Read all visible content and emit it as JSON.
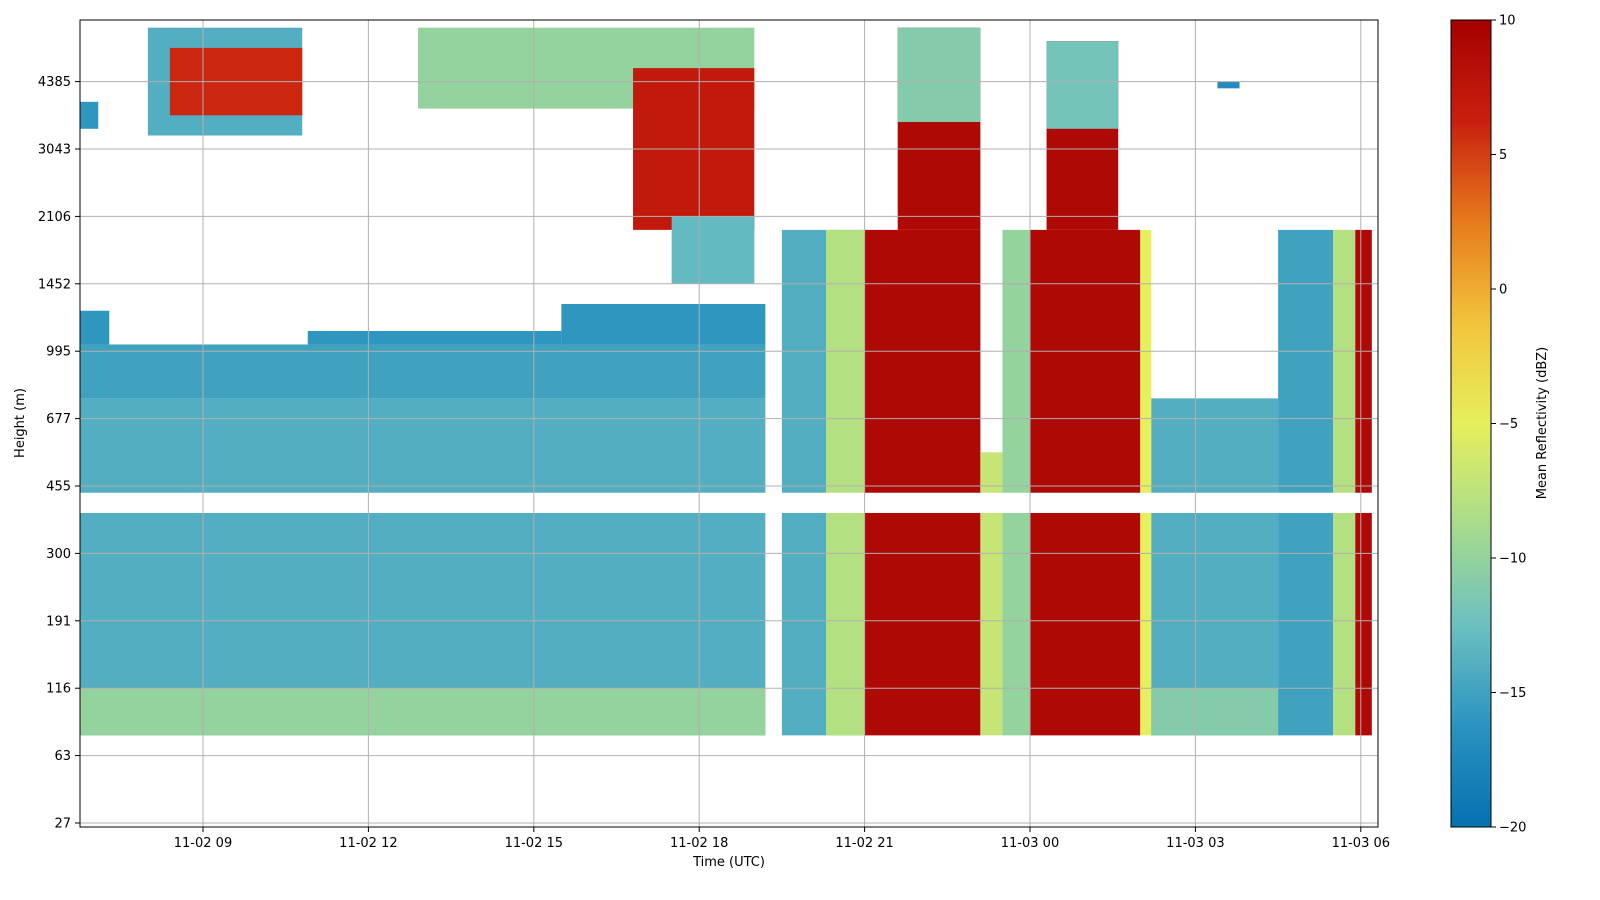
{
  "chart_data": {
    "type": "heatmap",
    "title": "",
    "xlabel": "Time (UTC)",
    "ylabel": "Height (m)",
    "grid": true,
    "x_range_hours": [
      6.2,
      30.3
    ],
    "x_ticks": [
      {
        "label": "11-02 09",
        "hours": 9
      },
      {
        "label": "11-02 12",
        "hours": 12
      },
      {
        "label": "11-02 15",
        "hours": 15
      },
      {
        "label": "11-02 18",
        "hours": 18
      },
      {
        "label": "11-02 21",
        "hours": 21
      },
      {
        "label": "11-03 00",
        "hours": 24
      },
      {
        "label": "11-03 03",
        "hours": 27
      },
      {
        "label": "11-03 06",
        "hours": 30
      }
    ],
    "y_tick_labels": [
      "27",
      "63",
      "116",
      "191",
      "300",
      "455",
      "677",
      "995",
      "1452",
      "2106",
      "3043",
      "4385"
    ],
    "colorbar": {
      "label": "Mean Reflectivity (dBZ)",
      "range": [
        -20,
        10
      ],
      "ticks": [
        10,
        5,
        0,
        -5,
        -10,
        -15,
        -20
      ],
      "tick_labels": [
        "10",
        "5",
        "0",
        "−5",
        "−10",
        "−15",
        "−20"
      ],
      "colormap": "RdYlBu_r",
      "colors": [
        "#0571b0",
        "#2b93c0",
        "#6cc0c0",
        "#a8dc8c",
        "#e6ef5c",
        "#f2c43c",
        "#e67a1c",
        "#c8200f",
        "#a50000"
      ]
    },
    "regions": [
      {
        "name": "low-cloud-base",
        "t": [
          6.3,
          19.2
        ],
        "y_idx": [
          1.3,
          6.3
        ],
        "dbz": -14
      },
      {
        "name": "low-cloud-top",
        "t": [
          6.3,
          19.2
        ],
        "y_idx": [
          6.3,
          7.1
        ],
        "dbz": -15
      },
      {
        "name": "low-cloud-top-2",
        "t": [
          6.3,
          7.3
        ],
        "y_idx": [
          7.1,
          7.6
        ],
        "dbz": -16
      },
      {
        "name": "low-cloud-mid",
        "t": [
          10.9,
          15.5
        ],
        "y_idx": [
          7.1,
          7.3
        ],
        "dbz": -16
      },
      {
        "name": "low-cloud-rise",
        "t": [
          15.5,
          19.2
        ],
        "y_idx": [
          7.1,
          7.7
        ],
        "dbz": -16
      },
      {
        "name": "surface-band",
        "t": [
          6.3,
          19.2
        ],
        "y_idx": [
          1.3,
          2.0
        ],
        "dbz": -10
      },
      {
        "name": "upper-cloud-1",
        "t": [
          8.0,
          10.8
        ],
        "y_idx": [
          10.2,
          11.8
        ],
        "dbz": -14
      },
      {
        "name": "upper-cloud-1-core",
        "t": [
          8.4,
          10.8
        ],
        "y_idx": [
          10.5,
          11.5
        ],
        "dbz": 6
      },
      {
        "name": "upper-cloud-2",
        "t": [
          12.9,
          19.0
        ],
        "y_idx": [
          10.6,
          11.8
        ],
        "dbz": -10
      },
      {
        "name": "upper-cloud-2-core",
        "t": [
          16.8,
          19.0
        ],
        "y_idx": [
          8.8,
          11.2
        ],
        "dbz": 7
      },
      {
        "name": "upper-cloud-2-tail",
        "t": [
          17.5,
          19.0
        ],
        "y_idx": [
          8.0,
          9.0
        ],
        "dbz": -13
      },
      {
        "name": "precip-1-low",
        "t": [
          19.5,
          21.0
        ],
        "y_idx": [
          1.3,
          8.8
        ],
        "dbz": -14
      },
      {
        "name": "precip-1-edge",
        "t": [
          20.3,
          21.0
        ],
        "y_idx": [
          1.3,
          8.8
        ],
        "dbz": -8
      },
      {
        "name": "precip-1-core",
        "t": [
          21.0,
          23.1
        ],
        "y_idx": [
          1.3,
          8.8
        ],
        "dbz": 9
      },
      {
        "name": "precip-1-upper",
        "t": [
          21.6,
          23.1
        ],
        "y_idx": [
          8.8,
          11.8
        ],
        "dbz": 9
      },
      {
        "name": "precip-1-upper-edge",
        "t": [
          21.6,
          23.1
        ],
        "y_idx": [
          10.4,
          11.8
        ],
        "dbz": -11
      },
      {
        "name": "precip-gap-fill",
        "t": [
          23.1,
          23.5
        ],
        "y_idx": [
          1.3,
          5.5
        ],
        "dbz": -7
      },
      {
        "name": "precip-2-edge",
        "t": [
          23.5,
          24.0
        ],
        "y_idx": [
          1.3,
          8.8
        ],
        "dbz": -10
      },
      {
        "name": "precip-2-core",
        "t": [
          24.0,
          26.0
        ],
        "y_idx": [
          1.3,
          8.8
        ],
        "dbz": 9
      },
      {
        "name": "precip-2-upper",
        "t": [
          24.3,
          25.6
        ],
        "y_idx": [
          8.8,
          11.6
        ],
        "dbz": 9
      },
      {
        "name": "precip-2-upper-edge",
        "t": [
          24.3,
          25.6
        ],
        "y_idx": [
          10.3,
          11.6
        ],
        "dbz": -12
      },
      {
        "name": "precip-2-trail",
        "t": [
          26.0,
          26.2
        ],
        "y_idx": [
          1.3,
          8.8
        ],
        "dbz": -5
      },
      {
        "name": "late-low-cloud",
        "t": [
          26.2,
          28.5
        ],
        "y_idx": [
          1.3,
          6.3
        ],
        "dbz": -14
      },
      {
        "name": "late-surface-band",
        "t": [
          26.2,
          28.5
        ],
        "y_idx": [
          1.3,
          2.0
        ],
        "dbz": -11
      },
      {
        "name": "precip-3-low",
        "t": [
          28.5,
          29.5
        ],
        "y_idx": [
          1.3,
          8.8
        ],
        "dbz": -15
      },
      {
        "name": "precip-3-edge",
        "t": [
          29.5,
          29.9
        ],
        "y_idx": [
          1.3,
          8.8
        ],
        "dbz": -8
      },
      {
        "name": "precip-3-core",
        "t": [
          29.9,
          30.2
        ],
        "y_idx": [
          1.3,
          8.8
        ],
        "dbz": 9
      },
      {
        "name": "isolated-patch",
        "t": [
          27.4,
          27.8
        ],
        "y_idx": [
          10.9,
          11.0
        ],
        "dbz": -17
      },
      {
        "name": "patch-upper-left",
        "t": [
          6.7,
          7.1
        ],
        "y_idx": [
          10.3,
          10.7
        ],
        "dbz": -16
      }
    ],
    "gaps": [
      {
        "name": "gap-band-300-191",
        "t": [
          6.2,
          30.3
        ],
        "y_idx": [
          4.6,
          4.9
        ]
      }
    ]
  }
}
